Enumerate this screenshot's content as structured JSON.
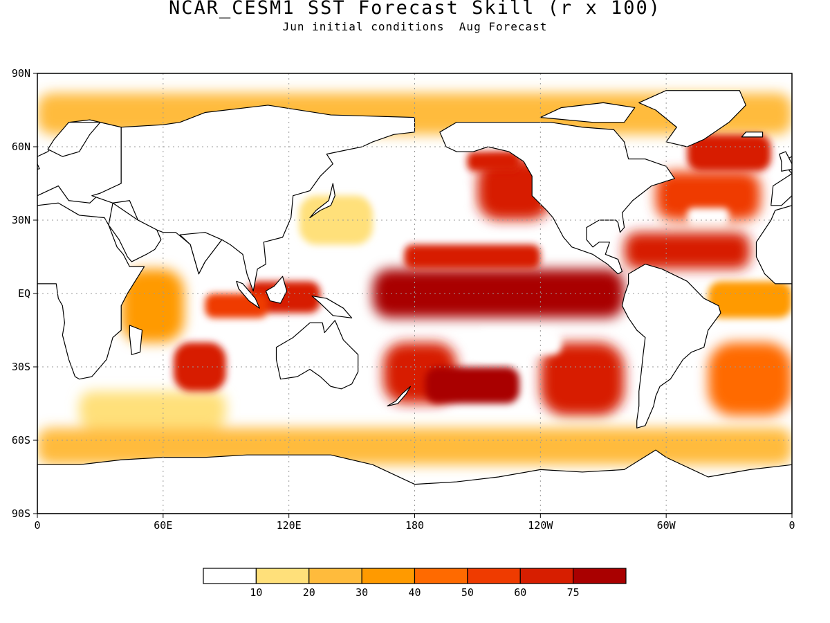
{
  "title": "NCAR_CESM1 SST Forecast Skill (r x 100)",
  "subtitle": "Jun initial conditions  Aug Forecast",
  "map": {
    "projection": "equirectangular",
    "lon_range": [
      0,
      360
    ],
    "lat_range": [
      -90,
      90
    ],
    "grid": "dotted",
    "lon_ticks": [
      {
        "lon": 0,
        "label": "0"
      },
      {
        "lon": 60,
        "label": "60E"
      },
      {
        "lon": 120,
        "label": "120E"
      },
      {
        "lon": 180,
        "label": "180"
      },
      {
        "lon": 240,
        "label": "120W"
      },
      {
        "lon": 300,
        "label": "60W"
      },
      {
        "lon": 360,
        "label": "0"
      }
    ],
    "lat_ticks": [
      {
        "lat": 90,
        "label": "90N"
      },
      {
        "lat": 60,
        "label": "60N"
      },
      {
        "lat": 30,
        "label": "30N"
      },
      {
        "lat": 0,
        "label": "EQ"
      },
      {
        "lat": -30,
        "label": "30S"
      },
      {
        "lat": -60,
        "label": "60S"
      },
      {
        "lat": -90,
        "label": "90S"
      }
    ]
  },
  "colorbar": {
    "colors": [
      "#ffffff",
      "#ffe07a",
      "#ffbb3c",
      "#ff9a00",
      "#ff6a00",
      "#ef3b00",
      "#d71e00",
      "#a90000"
    ],
    "labels": [
      "10",
      "20",
      "30",
      "40",
      "50",
      "60",
      "75"
    ]
  },
  "chart_data": {
    "type": "heatmap",
    "title": "NCAR_CESM1 SST Forecast Skill (r x 100)",
    "subtitle": "Jun initial conditions  Aug Forecast",
    "x_axis": "longitude",
    "y_axis": "latitude",
    "xlim": [
      0,
      360
    ],
    "ylim": [
      -90,
      90
    ],
    "levels": [
      10,
      20,
      30,
      40,
      50,
      60,
      75
    ],
    "regions": [
      {
        "region": "Equatorial central-eastern Pacific",
        "lon": [
          160,
          280
        ],
        "lat": [
          -10,
          10
        ],
        "r_x100": 80
      },
      {
        "region": "Central Pacific north of equator",
        "lon": [
          175,
          240
        ],
        "lat": [
          10,
          20
        ],
        "r_x100": 70
      },
      {
        "region": "South Pacific subtropics",
        "lon": [
          185,
          230
        ],
        "lat": [
          -45,
          -30
        ],
        "r_x100": 78
      },
      {
        "region": "Southwest Pacific",
        "lon": [
          165,
          200
        ],
        "lat": [
          -45,
          -20
        ],
        "r_x100": 65
      },
      {
        "region": "Southeast Pacific",
        "lon": [
          240,
          280
        ],
        "lat": [
          -50,
          -20
        ],
        "r_x100": 60
      },
      {
        "region": "South Pacific low-skill band",
        "lon": [
          210,
          250
        ],
        "lat": [
          -25,
          -15
        ],
        "r_x100": 5
      },
      {
        "region": "North Pacific low-skill patch",
        "lon": [
          160,
          205
        ],
        "lat": [
          35,
          45
        ],
        "r_x100": 5
      },
      {
        "region": "Northeast Pacific",
        "lon": [
          210,
          245
        ],
        "lat": [
          30,
          55
        ],
        "r_x100": 60
      },
      {
        "region": "Gulf of Alaska",
        "lon": [
          205,
          230
        ],
        "lat": [
          50,
          58
        ],
        "r_x100": 65
      },
      {
        "region": "Western North Pacific",
        "lon": [
          125,
          160
        ],
        "lat": [
          20,
          40
        ],
        "r_x100": 15
      },
      {
        "region": "Indonesian seas",
        "lon": [
          100,
          135
        ],
        "lat": [
          -8,
          5
        ],
        "r_x100": 60
      },
      {
        "region": "Eastern Indian Ocean",
        "lon": [
          80,
          110
        ],
        "lat": [
          -10,
          0
        ],
        "r_x100": 55
      },
      {
        "region": "Central Indian Ocean",
        "lon": [
          65,
          90
        ],
        "lat": [
          -40,
          -20
        ],
        "r_x100": 60
      },
      {
        "region": "Western Indian Ocean",
        "lon": [
          40,
          70
        ],
        "lat": [
          -20,
          10
        ],
        "r_x100": 35
      },
      {
        "region": "Southern Indian Ocean",
        "lon": [
          20,
          90
        ],
        "lat": [
          -55,
          -40
        ],
        "r_x100": 15
      },
      {
        "region": "North Atlantic subpolar",
        "lon": [
          310,
          350
        ],
        "lat": [
          50,
          65
        ],
        "r_x100": 65
      },
      {
        "region": "North Atlantic midlatitude",
        "lon": [
          295,
          345
        ],
        "lat": [
          30,
          50
        ],
        "r_x100": 55
      },
      {
        "region": "North Atlantic low-skill patch",
        "lon": [
          310,
          330
        ],
        "lat": [
          28,
          35
        ],
        "r_x100": 5
      },
      {
        "region": "Tropical North Atlantic / Caribbean",
        "lon": [
          280,
          340
        ],
        "lat": [
          10,
          25
        ],
        "r_x100": 60
      },
      {
        "region": "Equatorial Atlantic",
        "lon": [
          320,
          360
        ],
        "lat": [
          -10,
          5
        ],
        "r_x100": 30
      },
      {
        "region": "South Atlantic",
        "lon": [
          320,
          360
        ],
        "lat": [
          -50,
          -20
        ],
        "r_x100": 45
      },
      {
        "region": "Southern Ocean",
        "lon": [
          0,
          360
        ],
        "lat": [
          -70,
          -55
        ],
        "r_x100": 25
      },
      {
        "region": "Arctic marginal seas",
        "lon": [
          0,
          360
        ],
        "lat": [
          65,
          82
        ],
        "r_x100": 25
      }
    ]
  }
}
